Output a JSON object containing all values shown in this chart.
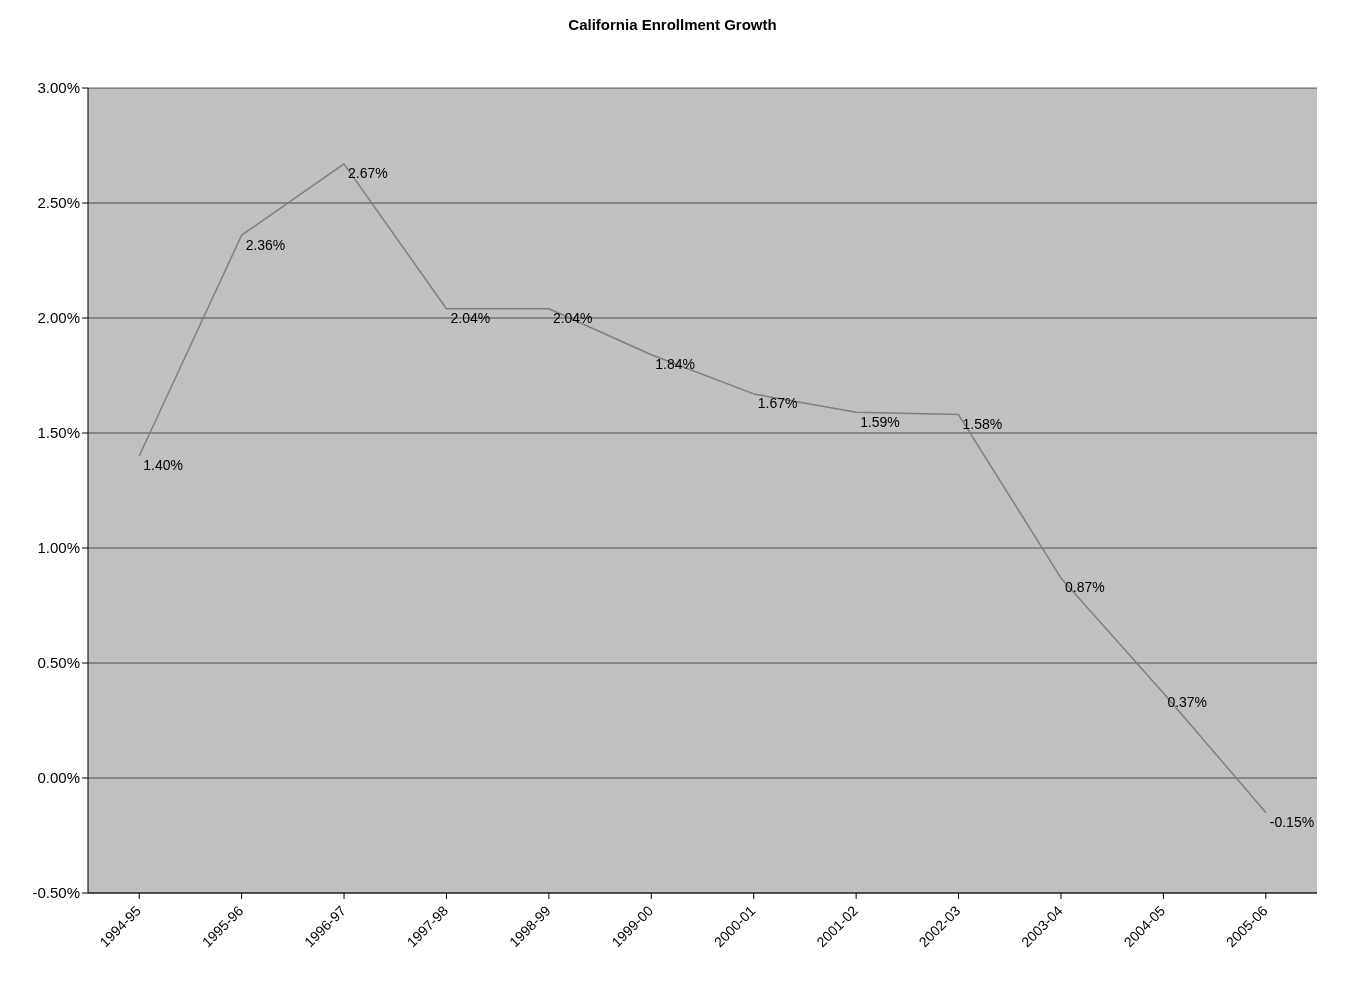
{
  "chart_data": {
    "type": "line",
    "title": "California Enrollment Growth",
    "categories": [
      "1994-95",
      "1995-96",
      "1996-97",
      "1997-98",
      "1998-99",
      "1999-00",
      "2000-01",
      "2001-02",
      "2002-03",
      "2003-04",
      "2004-05",
      "2005-06"
    ],
    "series": [
      {
        "color": "#7f7f7f",
        "values": [
          1.4,
          2.36,
          2.67,
          2.04,
          2.04,
          1.84,
          1.67,
          1.59,
          1.58,
          0.87,
          0.37,
          -0.15
        ],
        "value_labels": [
          "1.40%",
          "2.36%",
          "2.67%",
          "2.04%",
          "2.04%",
          "1.84%",
          "1.67%",
          "1.59%",
          "1.58%",
          "0.87%",
          "0.37%",
          "-0.15%"
        ]
      }
    ],
    "ylim": [
      -0.5,
      3
    ],
    "yticks": [
      {
        "value": -0.5,
        "label": "-0.50%"
      },
      {
        "value": 0,
        "label": "0.00%"
      },
      {
        "value": 0.5,
        "label": "0.50%"
      },
      {
        "value": 1,
        "label": "1.00%"
      },
      {
        "value": 1.5,
        "label": "1.50%"
      },
      {
        "value": 2,
        "label": "2.00%"
      },
      {
        "value": 2.5,
        "label": "2.50%"
      },
      {
        "value": 3,
        "label": "3.00%"
      }
    ],
    "grid": "y",
    "legend": false,
    "marker": "none",
    "line_style": "solid"
  }
}
